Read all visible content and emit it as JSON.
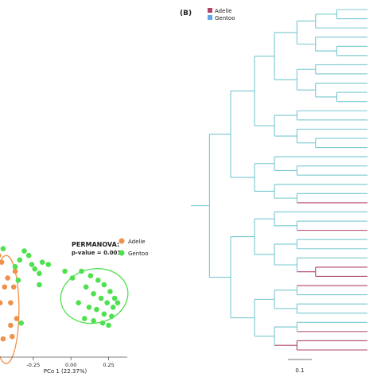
{
  "figure": {
    "panel_b_label": "(B)"
  },
  "chart_data": [
    {
      "panel": "A",
      "type": "scatter",
      "xlabel": "PCo 1 (22.37%)",
      "x_ticks": [
        "-0.25",
        "0.00",
        "0.25"
      ],
      "x_tick_values": [
        -0.25,
        0.0,
        0.25
      ],
      "xlim": [
        -0.55,
        0.4
      ],
      "ylim": [
        -0.3,
        0.3
      ],
      "annotation": {
        "line1": "PERMANOVA:",
        "line2": "p-value = 0.001"
      },
      "legend": {
        "position": "top-right",
        "entries": [
          "Adelie",
          "Gentoo"
        ]
      },
      "series": [
        {
          "name": "Adelie",
          "color": "#f0914a",
          "points": [
            [
              -0.48,
              0.19
            ],
            [
              -0.46,
              0.16
            ],
            [
              -0.5,
              0.11
            ],
            [
              -0.44,
              0.05
            ],
            [
              -0.47,
              -0.02
            ],
            [
              -0.4,
              -0.02
            ],
            [
              -0.38,
              0.05
            ],
            [
              -0.36,
              -0.09
            ],
            [
              -0.39,
              -0.17
            ],
            [
              -0.45,
              -0.18
            ],
            [
              -0.4,
              -0.12
            ],
            [
              -0.42,
              0.09
            ],
            [
              -0.37,
              0.12
            ]
          ],
          "ellipse": {
            "cx": -0.43,
            "cy": -0.05,
            "rx": 0.085,
            "ry": 0.24
          }
        },
        {
          "name": "Gentoo",
          "color": "#4fe04f",
          "points": [
            [
              -0.37,
              0.14
            ],
            [
              -0.34,
              0.17
            ],
            [
              -0.31,
              0.21
            ],
            [
              -0.28,
              0.19
            ],
            [
              -0.26,
              0.15
            ],
            [
              -0.24,
              0.13
            ],
            [
              -0.21,
              0.11
            ],
            [
              -0.35,
              0.08
            ],
            [
              -0.45,
              0.22
            ],
            [
              -0.33,
              -0.11
            ],
            [
              -0.21,
              0.06
            ],
            [
              -0.19,
              0.16
            ],
            [
              -0.15,
              0.15
            ],
            [
              -0.04,
              0.12
            ],
            [
              0.01,
              0.09
            ],
            [
              0.07,
              0.12
            ],
            [
              0.13,
              0.1
            ],
            [
              0.18,
              0.08
            ],
            [
              0.22,
              0.06
            ],
            [
              0.26,
              0.03
            ],
            [
              0.29,
              0.0
            ],
            [
              0.1,
              0.05
            ],
            [
              0.15,
              0.02
            ],
            [
              0.2,
              0.0
            ],
            [
              0.24,
              -0.02
            ],
            [
              0.28,
              -0.04
            ],
            [
              0.05,
              -0.02
            ],
            [
              0.12,
              -0.04
            ],
            [
              0.17,
              -0.05
            ],
            [
              0.22,
              -0.07
            ],
            [
              0.27,
              -0.08
            ],
            [
              0.09,
              -0.09
            ],
            [
              0.15,
              -0.1
            ],
            [
              0.21,
              -0.11
            ],
            [
              0.25,
              -0.12
            ],
            [
              0.31,
              -0.02
            ]
          ],
          "ellipse": {
            "cx": 0.155,
            "cy": 0.01,
            "rx": 0.225,
            "ry": 0.12,
            "rotate_deg": -12
          }
        }
      ]
    },
    {
      "panel": "B",
      "type": "tree",
      "legend": {
        "position": "top-left",
        "entries": [
          {
            "name": "Adelie",
            "color": "#b0456a"
          },
          {
            "name": "Gentoo",
            "color": "#5ea8e6"
          }
        ]
      },
      "branch_color_default": "#78c8d0",
      "scale_bar_label": "0.1",
      "leaf_groups": [
        "Gentoo",
        "Gentoo",
        "Gentoo",
        "Gentoo",
        "Gentoo",
        "Gentoo",
        "Gentoo",
        "Gentoo",
        "Gentoo",
        "Gentoo",
        "Gentoo",
        "Gentoo",
        "Gentoo",
        "Gentoo",
        "Gentoo",
        "Gentoo",
        "Gentoo",
        "Gentoo",
        "Gentoo",
        "Gentoo",
        "Gentoo",
        "Adelie",
        "Gentoo",
        "Gentoo",
        "Adelie",
        "Gentoo",
        "Gentoo",
        "Gentoo",
        "Adelie",
        "Adelie",
        "Adelie",
        "Gentoo",
        "Gentoo",
        "Gentoo",
        "Gentoo",
        "Adelie",
        "Adelie",
        "Adelie"
      ]
    }
  ]
}
